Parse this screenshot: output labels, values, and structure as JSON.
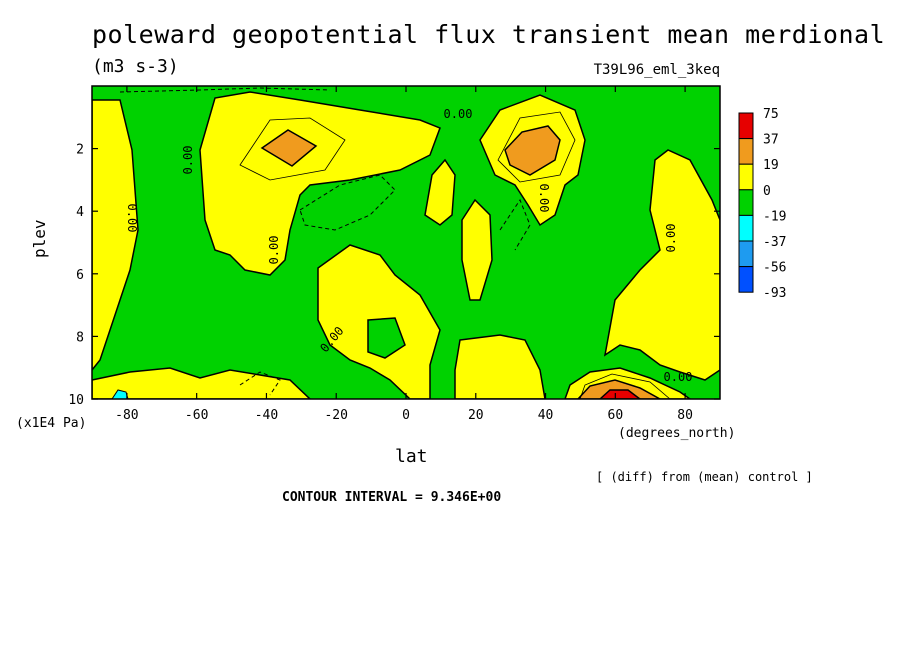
{
  "title": "poleward geopotential flux transient mean merdional",
  "units": "(m3 s-3)",
  "run_id": "T39L96_eml_3keq",
  "note": "[ (diff) from (mean) control ]",
  "contour_interval": "CONTOUR INTERVAL = 9.346E+00",
  "chart_data": {
    "type": "heatmap",
    "xlabel": "lat",
    "ylabel": "plev",
    "x_units": "(degrees_north)",
    "y_units": "(x1E4 Pa)",
    "xlim": [
      -90,
      90
    ],
    "ylim": [
      10,
      0
    ],
    "x_ticks": [
      "-80",
      "-60",
      "-40",
      "-20",
      "0",
      "20",
      "40",
      "60",
      "80"
    ],
    "y_ticks": [
      "2",
      "4",
      "6",
      "8",
      "10"
    ],
    "colorbar": {
      "levels": [
        "75",
        "37",
        "19",
        "0",
        "-19",
        "-37",
        "-56",
        "-93"
      ],
      "colors": [
        "#e60000",
        "#f09b1e",
        "#ffff00",
        "#00d200",
        "#00ffff",
        "#1e9bf0",
        "#0050ff"
      ]
    },
    "contour_labels": [
      "0.00",
      "0.00",
      "0.00",
      "0.00",
      "0.00",
      "0.00",
      "0.00",
      "0.00"
    ],
    "regions": [
      {
        "value": 10,
        "lat": [
          -90,
          -77
        ],
        "plev": [
          0.5,
          9.6
        ]
      },
      {
        "value": 10,
        "lat": [
          -55,
          -2
        ],
        "plev": [
          0.3,
          3.2
        ]
      },
      {
        "value": 10,
        "lat": [
          -30,
          -2
        ],
        "plev": [
          2.4,
          6.0
        ]
      },
      {
        "value": 10,
        "lat": [
          -20,
          2
        ],
        "plev": [
          5.8,
          10
        ]
      },
      {
        "value": 25,
        "lat": [
          -40,
          -28
        ],
        "plev": [
          1.5,
          2.7
        ]
      },
      {
        "value": 25,
        "lat": [
          28,
          40
        ],
        "plev": [
          1.3,
          2.9
        ]
      },
      {
        "value": 10,
        "lat": [
          58,
          84
        ],
        "plev": [
          4.8,
          9.2
        ]
      },
      {
        "value": 60,
        "lat": [
          54,
          64
        ],
        "plev": [
          9.6,
          10
        ]
      }
    ]
  }
}
